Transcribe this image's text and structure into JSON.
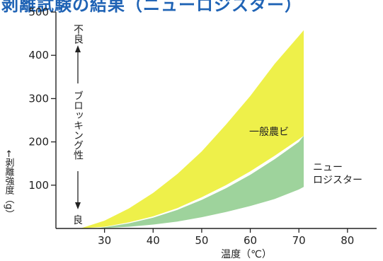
{
  "title": "剥離試験の結果（ニューロジスター）",
  "chart_data": {
    "type": "area",
    "xlabel": "温度（℃）",
    "ylabel": "←剥離強度（g）",
    "xlim": [
      20,
      86
    ],
    "ylim": [
      0,
      500
    ],
    "x_ticks": [
      30,
      40,
      50,
      60,
      70,
      80
    ],
    "y_ticks": [
      100,
      200,
      300,
      400,
      500
    ],
    "grid": false,
    "blocking_axis": {
      "top": "不良",
      "middle": "ブロッキング性",
      "bottom": "良"
    },
    "series": [
      {
        "name": "一般農ビ",
        "color": "#eef04a",
        "x": [
          25,
          30,
          35,
          40,
          45,
          50,
          55,
          60,
          65,
          70,
          71
        ],
        "upper": [
          0,
          18,
          46,
          82,
          126,
          178,
          240,
          306,
          380,
          445,
          458
        ],
        "lower": [
          0,
          4,
          14,
          28,
          47,
          72,
          100,
          132,
          168,
          206,
          214
        ]
      },
      {
        "name": "ニューロジスター",
        "color": "#9ed39c",
        "x": [
          28,
          30,
          35,
          40,
          45,
          50,
          55,
          60,
          65,
          70,
          71
        ],
        "upper": [
          0,
          3,
          12,
          25,
          43,
          66,
          93,
          124,
          160,
          200,
          214
        ],
        "lower": [
          0,
          1,
          4,
          9,
          16,
          26,
          38,
          52,
          68,
          90,
          96
        ]
      }
    ]
  }
}
